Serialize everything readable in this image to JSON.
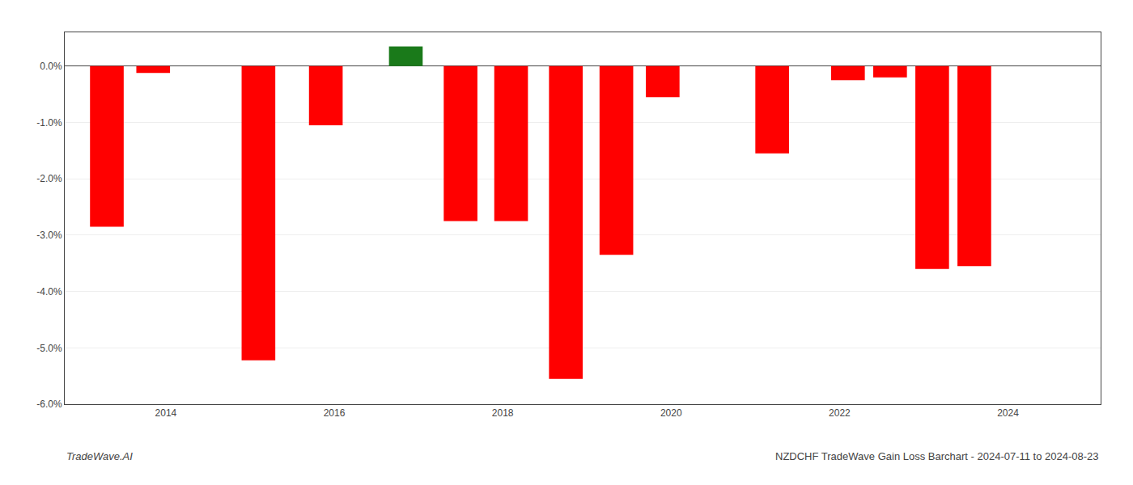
{
  "chart_data": {
    "type": "bar",
    "x": [
      2013.3,
      2013.85,
      2015.1,
      2015.9,
      2016.85,
      2017.5,
      2018.1,
      2018.75,
      2019.35,
      2019.9,
      2021.2,
      2022.1,
      2022.6,
      2023.1,
      2023.6
    ],
    "values": [
      -2.85,
      -0.12,
      -5.22,
      -1.05,
      0.35,
      -2.75,
      -2.75,
      -5.55,
      -3.35,
      -0.55,
      -1.55,
      -0.25,
      -0.2,
      -3.6,
      -3.55
    ],
    "colors": [
      "#ff0000",
      "#ff0000",
      "#ff0000",
      "#ff0000",
      "#1a7a1a",
      "#ff0000",
      "#ff0000",
      "#ff0000",
      "#ff0000",
      "#ff0000",
      "#ff0000",
      "#ff0000",
      "#ff0000",
      "#ff0000",
      "#ff0000"
    ],
    "xlim": [
      2012.8,
      2025.1
    ],
    "ylim": [
      -6.0,
      0.6
    ],
    "xticks": [
      2014,
      2016,
      2018,
      2020,
      2022,
      2024
    ],
    "yticks": [
      {
        "value": -6,
        "label": "-6.0%"
      },
      {
        "value": -5,
        "label": "-5.0%"
      },
      {
        "value": -4,
        "label": "-4.0%"
      },
      {
        "value": -3,
        "label": "-3.0%"
      },
      {
        "value": -2,
        "label": "-2.0%"
      },
      {
        "value": -1,
        "label": "-1.0%"
      },
      {
        "value": 0,
        "label": "0.0%"
      }
    ],
    "grid": true,
    "annotations": [
      "TradeWave.AI",
      "NZDCHF TradeWave Gain Loss Barchart - 2024-07-11 to 2024-08-23"
    ]
  }
}
